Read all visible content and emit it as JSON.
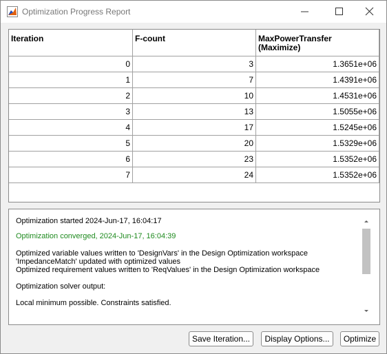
{
  "window": {
    "title": "Optimization Progress Report"
  },
  "table": {
    "headers": [
      "Iteration",
      "F-count",
      [
        "MaxPowerTransfer",
        "(Maximize)"
      ]
    ],
    "rows": [
      [
        0,
        3,
        "1.3651e+06"
      ],
      [
        1,
        7,
        "1.4391e+06"
      ],
      [
        2,
        10,
        "1.4531e+06"
      ],
      [
        3,
        13,
        "1.5055e+06"
      ],
      [
        4,
        17,
        "1.5245e+06"
      ],
      [
        5,
        20,
        "1.5329e+06"
      ],
      [
        6,
        23,
        "1.5352e+06"
      ],
      [
        7,
        24,
        "1.5352e+06"
      ]
    ]
  },
  "log": {
    "lines": [
      {
        "text": "Optimization started 2024-Jun-17, 16:04:17",
        "color": "#000000"
      },
      {
        "text": "Optimization converged, 2024-Jun-17, 16:04:39",
        "color": "#1e8a1e"
      },
      {
        "text": "Optimized variable values written to 'DesignVars' in the Design Optimization workspace",
        "color": "#000000"
      },
      {
        "text": "'ImpedanceMatch' updated with optimized values",
        "color": "#000000"
      },
      {
        "text": "Optimized requirement values written to 'ReqValues' in the Design Optimization workspace",
        "color": "#000000"
      },
      {
        "text": "Optimization solver output:",
        "color": "#000000"
      },
      {
        "text": "Local minimum possible. Constraints satisfied.",
        "color": "#000000"
      }
    ]
  },
  "buttons": [
    "Save Iteration...",
    "Display Options...",
    "Optimize"
  ]
}
